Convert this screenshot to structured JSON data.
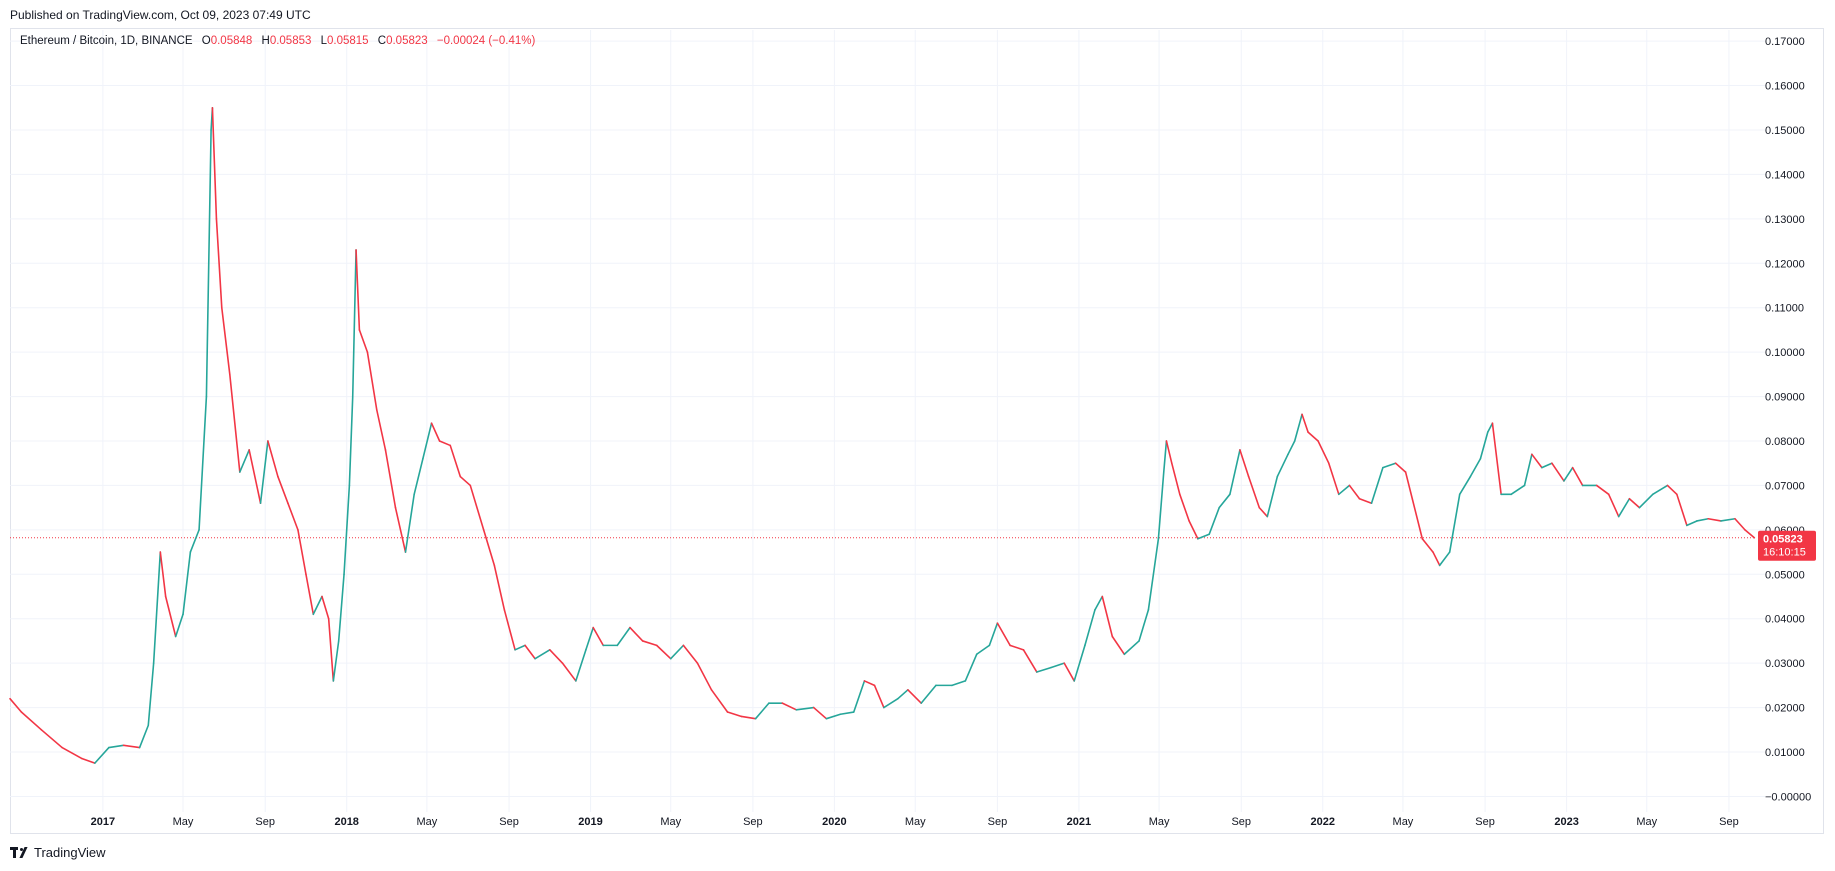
{
  "header": {
    "published": "Published on TradingView.com, Oct 09, 2023 07:49 UTC"
  },
  "legend": {
    "symbol": "Ethereum / Bitcoin, 1D, BINANCE",
    "o_label": "O",
    "o_value": "0.05848",
    "h_label": "H",
    "h_value": "0.05853",
    "l_label": "L",
    "l_value": "0.05815",
    "c_label": "C",
    "c_value": "0.05823",
    "change": "−0.00024 (−0.41%)"
  },
  "price_tag": {
    "price": "0.05823",
    "countdown": "16:10:15"
  },
  "footer": {
    "brand": "TradingView"
  },
  "colors": {
    "up": "#26a69a",
    "down": "#f23645",
    "grid": "#f0f3fa",
    "text": "#131722"
  },
  "chart_data": {
    "type": "line",
    "title": "Ethereum / Bitcoin, 1D, BINANCE",
    "x_ticks": [
      "2017",
      "May",
      "Sep",
      "2018",
      "May",
      "Sep",
      "2019",
      "May",
      "Sep",
      "2020",
      "May",
      "Sep",
      "2021",
      "May",
      "Sep",
      "2022",
      "May",
      "Sep",
      "2023",
      "May",
      "Sep"
    ],
    "y_ticks": [
      "0.17000",
      "0.16000",
      "0.15000",
      "0.14000",
      "0.13000",
      "0.12000",
      "0.11000",
      "0.10000",
      "0.09000",
      "0.08000",
      "0.07000",
      "0.06000",
      "0.05000",
      "0.04000",
      "0.03000",
      "0.02000",
      "0.01000",
      "−0.00000"
    ],
    "ylim": [
      -0.0035,
      0.1725
    ],
    "last_price": 0.05823,
    "x_axis": "dates",
    "series": [
      {
        "points": [
          [
            "2016-08-15",
            0.022
          ],
          [
            "2016-09-01",
            0.019
          ],
          [
            "2016-10-01",
            0.015
          ],
          [
            "2016-11-01",
            0.011
          ],
          [
            "2016-12-01",
            0.0085
          ],
          [
            "2016-12-20",
            0.0075
          ],
          [
            "2017-01-10",
            0.011
          ],
          [
            "2017-02-01",
            0.0115
          ],
          [
            "2017-02-25",
            0.011
          ],
          [
            "2017-03-10",
            0.016
          ],
          [
            "2017-03-18",
            0.03
          ],
          [
            "2017-03-28",
            0.055
          ],
          [
            "2017-04-05",
            0.045
          ],
          [
            "2017-04-20",
            0.036
          ],
          [
            "2017-05-01",
            0.041
          ],
          [
            "2017-05-12",
            0.055
          ],
          [
            "2017-05-25",
            0.06
          ],
          [
            "2017-06-05",
            0.09
          ],
          [
            "2017-06-12",
            0.15
          ],
          [
            "2017-06-14",
            0.155
          ],
          [
            "2017-06-20",
            0.13
          ],
          [
            "2017-06-28",
            0.11
          ],
          [
            "2017-07-10",
            0.095
          ],
          [
            "2017-07-25",
            0.073
          ],
          [
            "2017-08-08",
            0.078
          ],
          [
            "2017-08-25",
            0.066
          ],
          [
            "2017-09-05",
            0.08
          ],
          [
            "2017-09-20",
            0.072
          ],
          [
            "2017-10-05",
            0.066
          ],
          [
            "2017-10-20",
            0.06
          ],
          [
            "2017-11-01",
            0.05
          ],
          [
            "2017-11-12",
            0.041
          ],
          [
            "2017-11-25",
            0.045
          ],
          [
            "2017-12-05",
            0.04
          ],
          [
            "2017-12-12",
            0.026
          ],
          [
            "2017-12-20",
            0.035
          ],
          [
            "2017-12-28",
            0.05
          ],
          [
            "2018-01-05",
            0.07
          ],
          [
            "2018-01-10",
            0.09
          ],
          [
            "2018-01-15",
            0.123
          ],
          [
            "2018-01-20",
            0.105
          ],
          [
            "2018-02-01",
            0.1
          ],
          [
            "2018-02-15",
            0.087
          ],
          [
            "2018-02-28",
            0.078
          ],
          [
            "2018-03-15",
            0.065
          ],
          [
            "2018-03-30",
            0.055
          ],
          [
            "2018-04-12",
            0.068
          ],
          [
            "2018-04-25",
            0.076
          ],
          [
            "2018-05-08",
            0.084
          ],
          [
            "2018-05-20",
            0.08
          ],
          [
            "2018-06-05",
            0.079
          ],
          [
            "2018-06-20",
            0.072
          ],
          [
            "2018-07-05",
            0.07
          ],
          [
            "2018-07-25",
            0.06
          ],
          [
            "2018-08-10",
            0.052
          ],
          [
            "2018-08-25",
            0.042
          ],
          [
            "2018-09-10",
            0.033
          ],
          [
            "2018-09-25",
            0.034
          ],
          [
            "2018-10-10",
            0.031
          ],
          [
            "2018-11-01",
            0.033
          ],
          [
            "2018-11-20",
            0.03
          ],
          [
            "2018-12-10",
            0.026
          ],
          [
            "2018-12-25",
            0.033
          ],
          [
            "2019-01-05",
            0.038
          ],
          [
            "2019-01-20",
            0.034
          ],
          [
            "2019-02-10",
            0.034
          ],
          [
            "2019-03-01",
            0.038
          ],
          [
            "2019-03-20",
            0.035
          ],
          [
            "2019-04-10",
            0.034
          ],
          [
            "2019-05-01",
            0.031
          ],
          [
            "2019-05-20",
            0.034
          ],
          [
            "2019-06-10",
            0.03
          ],
          [
            "2019-07-01",
            0.024
          ],
          [
            "2019-07-25",
            0.019
          ],
          [
            "2019-08-15",
            0.018
          ],
          [
            "2019-09-05",
            0.0175
          ],
          [
            "2019-09-25",
            0.021
          ],
          [
            "2019-10-15",
            0.021
          ],
          [
            "2019-11-05",
            0.0195
          ],
          [
            "2019-12-01",
            0.02
          ],
          [
            "2019-12-20",
            0.0175
          ],
          [
            "2020-01-10",
            0.0185
          ],
          [
            "2020-01-30",
            0.019
          ],
          [
            "2020-02-15",
            0.026
          ],
          [
            "2020-03-01",
            0.025
          ],
          [
            "2020-03-15",
            0.02
          ],
          [
            "2020-04-05",
            0.022
          ],
          [
            "2020-04-20",
            0.024
          ],
          [
            "2020-05-10",
            0.021
          ],
          [
            "2020-06-01",
            0.025
          ],
          [
            "2020-06-25",
            0.025
          ],
          [
            "2020-07-15",
            0.026
          ],
          [
            "2020-08-01",
            0.032
          ],
          [
            "2020-08-20",
            0.034
          ],
          [
            "2020-09-01",
            0.039
          ],
          [
            "2020-09-20",
            0.034
          ],
          [
            "2020-10-10",
            0.033
          ],
          [
            "2020-10-30",
            0.028
          ],
          [
            "2020-11-20",
            0.029
          ],
          [
            "2020-12-10",
            0.03
          ],
          [
            "2020-12-25",
            0.026
          ],
          [
            "2021-01-10",
            0.034
          ],
          [
            "2021-01-25",
            0.042
          ],
          [
            "2021-02-05",
            0.045
          ],
          [
            "2021-02-20",
            0.036
          ],
          [
            "2021-03-10",
            0.032
          ],
          [
            "2021-04-01",
            0.035
          ],
          [
            "2021-04-15",
            0.042
          ],
          [
            "2021-04-30",
            0.058
          ],
          [
            "2021-05-08",
            0.073
          ],
          [
            "2021-05-12",
            0.08
          ],
          [
            "2021-05-20",
            0.075
          ],
          [
            "2021-06-01",
            0.068
          ],
          [
            "2021-06-15",
            0.062
          ],
          [
            "2021-06-28",
            0.058
          ],
          [
            "2021-07-15",
            0.059
          ],
          [
            "2021-07-30",
            0.065
          ],
          [
            "2021-08-15",
            0.068
          ],
          [
            "2021-08-30",
            0.078
          ],
          [
            "2021-09-12",
            0.072
          ],
          [
            "2021-09-28",
            0.065
          ],
          [
            "2021-10-10",
            0.063
          ],
          [
            "2021-10-25",
            0.072
          ],
          [
            "2021-11-10",
            0.077
          ],
          [
            "2021-11-20",
            0.08
          ],
          [
            "2021-12-01",
            0.086
          ],
          [
            "2021-12-10",
            0.082
          ],
          [
            "2021-12-25",
            0.08
          ],
          [
            "2022-01-10",
            0.075
          ],
          [
            "2022-01-25",
            0.068
          ],
          [
            "2022-02-10",
            0.07
          ],
          [
            "2022-02-25",
            0.067
          ],
          [
            "2022-03-15",
            0.066
          ],
          [
            "2022-04-01",
            0.074
          ],
          [
            "2022-04-20",
            0.075
          ],
          [
            "2022-05-05",
            0.073
          ],
          [
            "2022-05-15",
            0.067
          ],
          [
            "2022-05-30",
            0.058
          ],
          [
            "2022-06-15",
            0.055
          ],
          [
            "2022-06-25",
            0.052
          ],
          [
            "2022-07-10",
            0.055
          ],
          [
            "2022-07-25",
            0.068
          ],
          [
            "2022-08-10",
            0.072
          ],
          [
            "2022-08-25",
            0.076
          ],
          [
            "2022-09-05",
            0.082
          ],
          [
            "2022-09-12",
            0.084
          ],
          [
            "2022-09-25",
            0.068
          ],
          [
            "2022-10-10",
            0.068
          ],
          [
            "2022-10-30",
            0.07
          ],
          [
            "2022-11-10",
            0.077
          ],
          [
            "2022-11-25",
            0.074
          ],
          [
            "2022-12-10",
            0.075
          ],
          [
            "2022-12-28",
            0.071
          ],
          [
            "2023-01-10",
            0.074
          ],
          [
            "2023-01-25",
            0.07
          ],
          [
            "2023-02-15",
            0.07
          ],
          [
            "2023-03-05",
            0.068
          ],
          [
            "2023-03-20",
            0.063
          ],
          [
            "2023-04-05",
            0.067
          ],
          [
            "2023-04-20",
            0.065
          ],
          [
            "2023-05-10",
            0.068
          ],
          [
            "2023-06-01",
            0.07
          ],
          [
            "2023-06-15",
            0.068
          ],
          [
            "2023-06-30",
            0.061
          ],
          [
            "2023-07-15",
            0.062
          ],
          [
            "2023-08-01",
            0.0625
          ],
          [
            "2023-08-20",
            0.062
          ],
          [
            "2023-09-10",
            0.0625
          ],
          [
            "2023-09-25",
            0.06
          ],
          [
            "2023-10-09",
            0.05823
          ]
        ]
      }
    ]
  }
}
